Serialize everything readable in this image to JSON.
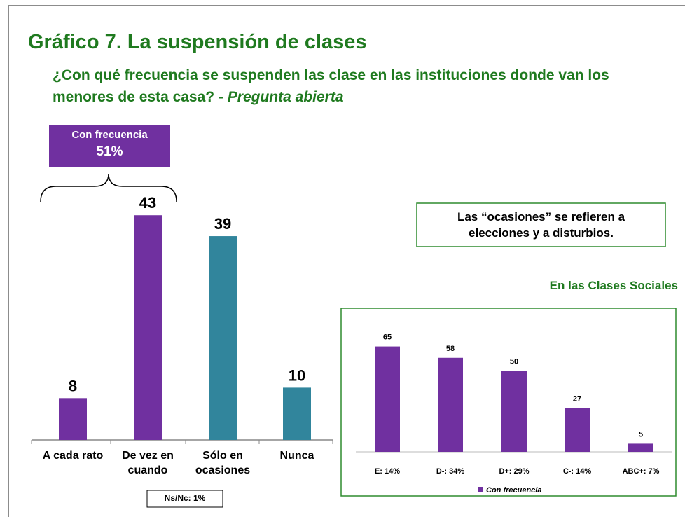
{
  "title": "Gráfico 7.  La suspensión de clases",
  "subtitle": "¿Con qué frecuencia se suspenden las clase en las instituciones donde van los menores de esta casa?",
  "subtitle_note": "- Pregunta abierta",
  "callout": [
    "Con frecuencia",
    "51%"
  ],
  "footnote": "Ns/Nc: 1%",
  "note": [
    "Las “ocasiones” se refieren a",
    "elecciones y a disturbios."
  ],
  "chart_data": [
    {
      "type": "bar",
      "categories": [
        "A cada rato",
        "De vez en cuando",
        "Sólo en ocasiones",
        "Nunca"
      ],
      "values": [
        8,
        43,
        39,
        10
      ],
      "colors": [
        "#7030a0",
        "#7030a0",
        "#31859c",
        "#31859c"
      ],
      "ylim": [
        0,
        50
      ]
    },
    {
      "type": "bar",
      "title": "En las Clases Sociales",
      "categories": [
        "E: 14%",
        "D-: 34%",
        "D+: 29%",
        "C-: 14%",
        "ABC+: 7%"
      ],
      "series": [
        {
          "name": "Con frecuencia",
          "color": "#7030a0",
          "values": [
            65,
            58,
            50,
            27,
            5
          ]
        }
      ],
      "ylim": [
        0,
        70
      ]
    }
  ]
}
